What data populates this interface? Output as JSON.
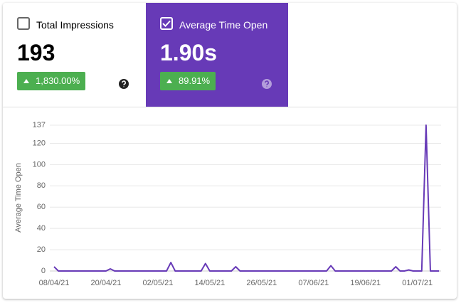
{
  "cards": [
    {
      "label": "Total Impressions",
      "value": "193",
      "change": "1,830.00%",
      "selected": false
    },
    {
      "label": "Average Time Open",
      "value": "1.90s",
      "change": "89.91%",
      "selected": true
    }
  ],
  "chart_data": {
    "type": "line",
    "y_label": "Average Time Open",
    "categories": [
      "08/04/21",
      null,
      null,
      null,
      null,
      null,
      null,
      null,
      null,
      null,
      null,
      null,
      "20/04/21",
      null,
      null,
      null,
      null,
      null,
      null,
      null,
      null,
      null,
      null,
      null,
      "02/05/21",
      null,
      null,
      null,
      null,
      null,
      null,
      null,
      null,
      null,
      null,
      null,
      "14/05/21",
      null,
      null,
      null,
      null,
      null,
      null,
      null,
      null,
      null,
      null,
      null,
      "26/05/21",
      null,
      null,
      null,
      null,
      null,
      null,
      null,
      null,
      null,
      null,
      null,
      "07/06/21",
      null,
      null,
      null,
      null,
      null,
      null,
      null,
      null,
      null,
      null,
      null,
      "19/06/21",
      null,
      null,
      null,
      null,
      null,
      null,
      null,
      null,
      null,
      null,
      null,
      "01/07/21",
      null,
      null,
      null,
      null,
      null
    ],
    "series": [
      {
        "name": "Average Time Open",
        "color": "#673ab7",
        "values": [
          4,
          0,
          0,
          0,
          0,
          0,
          0,
          0,
          0,
          0,
          0,
          0,
          0,
          2,
          0,
          0,
          0,
          0,
          0,
          0,
          0,
          0,
          0,
          0,
          0,
          0,
          0,
          8,
          0,
          0,
          0,
          0,
          0,
          0,
          0,
          7,
          0,
          0,
          0,
          0,
          0,
          0,
          4,
          0,
          0,
          0,
          0,
          0,
          0,
          0,
          0,
          0,
          0,
          0,
          0,
          0,
          0,
          0,
          0,
          0,
          0,
          0,
          0,
          0,
          5,
          0,
          0,
          0,
          0,
          0,
          0,
          0,
          0,
          0,
          0,
          0,
          0,
          0,
          0,
          4,
          0,
          0,
          1,
          0,
          0,
          0,
          137,
          0,
          0,
          0
        ]
      }
    ],
    "ylim": [
      0,
      137
    ],
    "yticks": [
      0,
      20,
      40,
      60,
      80,
      100,
      120,
      137
    ],
    "grid": true
  }
}
